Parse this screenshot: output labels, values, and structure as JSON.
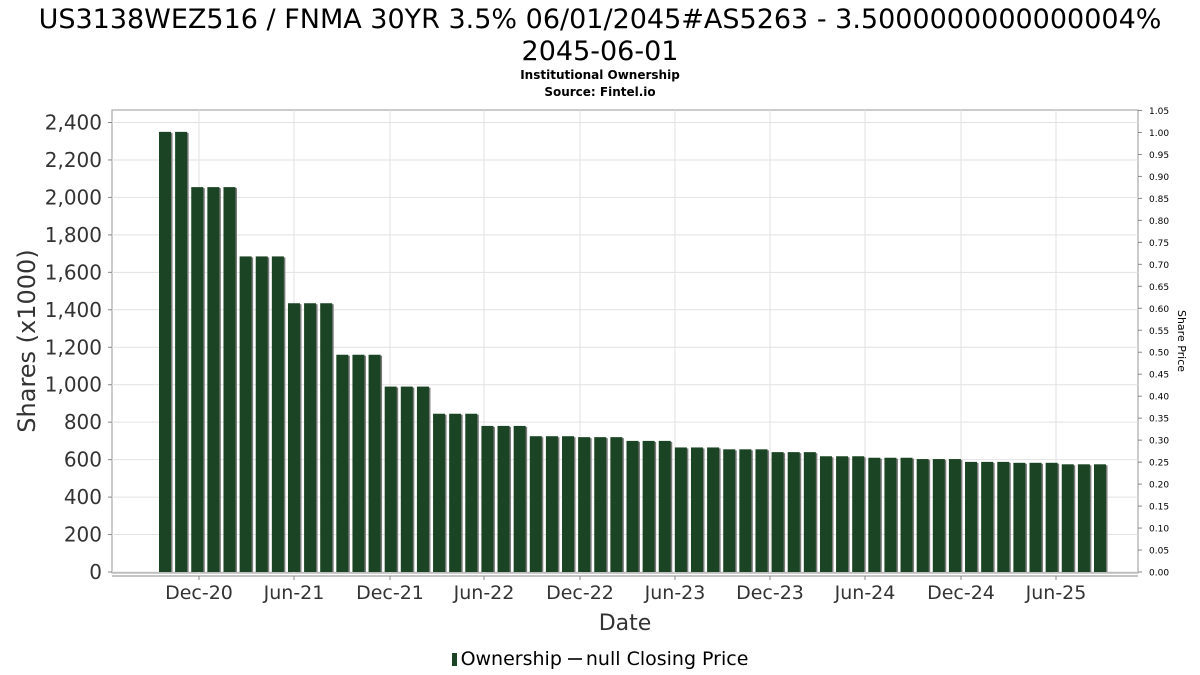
{
  "chart_data": {
    "type": "bar",
    "title": "US3138WEZ516 / FNMA 30YR 3.5% 06/01/2045#AS5263 - 3.5000000000000004%",
    "title_line2": "2045-06-01",
    "subtitle": "Institutional Ownership",
    "source": "Source: Fintel.io",
    "xlabel": "Date",
    "ylabel": "Shares (x1000)",
    "y2label": "Share Price",
    "ylim": [
      0,
      2450
    ],
    "y2lim": [
      0,
      1.05
    ],
    "yticks": [
      "0",
      "200",
      "400",
      "600",
      "800",
      "1,000",
      "1,200",
      "1,400",
      "1,600",
      "1,800",
      "2,000",
      "2,200",
      "2,400"
    ],
    "y2ticks": [
      "0.00",
      "0.05",
      "0.10",
      "0.15",
      "0.20",
      "0.25",
      "0.30",
      "0.35",
      "0.40",
      "0.45",
      "0.50",
      "0.55",
      "0.60",
      "0.65",
      "0.70",
      "0.75",
      "0.80",
      "0.85",
      "0.90",
      "0.95",
      "1.00",
      "1.05"
    ],
    "xticks": [
      "Dec-20",
      "Jun-21",
      "Dec-21",
      "Jun-22",
      "Dec-22",
      "Jun-23",
      "Dec-23",
      "Jun-24",
      "Dec-24",
      "Jun-25"
    ],
    "grid": true,
    "legend_position": "bottom",
    "series": [
      {
        "name": "Ownership",
        "color": "#1b4424",
        "values": [
          2350,
          2350,
          2055,
          2055,
          2055,
          1685,
          1685,
          1685,
          1435,
          1435,
          1435,
          1160,
          1160,
          1160,
          990,
          990,
          990,
          845,
          845,
          845,
          780,
          780,
          780,
          725,
          725,
          725,
          720,
          720,
          720,
          700,
          700,
          700,
          665,
          665,
          665,
          655,
          655,
          655,
          640,
          640,
          640,
          618,
          618,
          618,
          610,
          610,
          610,
          603,
          603,
          603,
          588,
          588,
          588,
          583,
          583,
          583,
          575,
          575,
          575
        ]
      },
      {
        "name": "null Closing Price",
        "color": "#333333",
        "values": []
      }
    ]
  }
}
